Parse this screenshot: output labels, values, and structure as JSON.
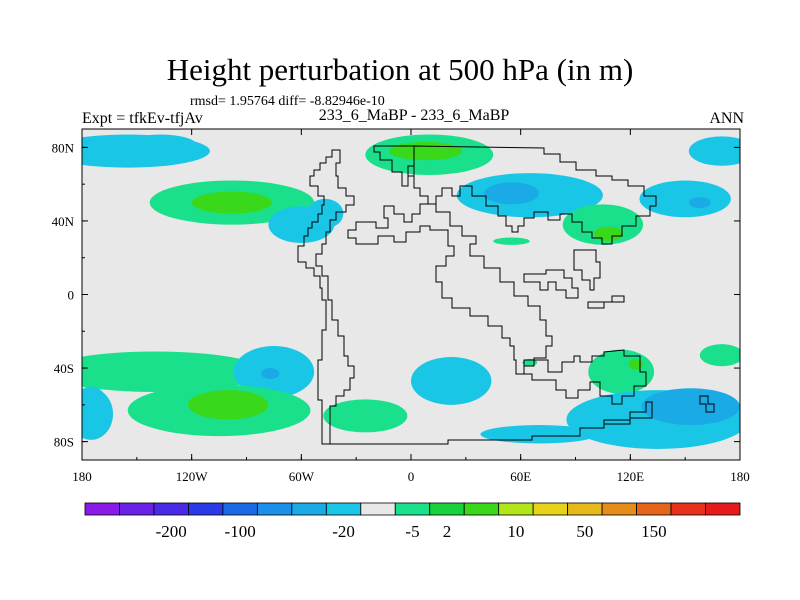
{
  "header": {
    "title": "Height perturbation at 500 hPa (in m)",
    "stats": "rmsd= 1.95764  diff= -8.82946e-10",
    "left_label": "Expt = tfkEv-tfjAv",
    "center_label": "233_6_MaBP - 233_6_MaBP",
    "right_label": "ANN"
  },
  "chart_data": {
    "type": "heatmap",
    "title": "Height perturbation at 500 hPa (in m)",
    "projection": "cylindrical equidistant, longitude 180 to 180, latitude 90S to 90N",
    "x_ticks": [
      "180",
      "120W",
      "60W",
      "0",
      "60E",
      "120E",
      "180"
    ],
    "y_ticks": [
      "80N",
      "40N",
      "0",
      "40S",
      "80S"
    ],
    "colorbar": {
      "labels": [
        "-200",
        "-100",
        "-20",
        "-5",
        "2",
        "10",
        "50",
        "150"
      ],
      "colors": [
        "#8a1ae6",
        "#6a22e6",
        "#4a2ae6",
        "#2a3ae6",
        "#1a6ae6",
        "#1a90e8",
        "#1aabe6",
        "#1ac6e6",
        "#e8e8e8",
        "#1ae08c",
        "#1ad13c",
        "#3ad81a",
        "#b2e61a",
        "#e6d21a",
        "#e6b81a",
        "#e68c1a",
        "#e6641a",
        "#e6301a",
        "#e61a1a"
      ]
    },
    "background_color": "#e8e8e8",
    "features": [
      {
        "kind": "negative",
        "level": "-5 to 2",
        "lon": -155,
        "lat": 78,
        "rx": 45,
        "ry": 9
      },
      {
        "kind": "negative",
        "level": "-5 to 2",
        "lon": -137,
        "lat": 81,
        "rx": 20,
        "ry": 6
      },
      {
        "kind": "negative",
        "level": "-5 to 2",
        "lon": 170,
        "lat": 78,
        "rx": 18,
        "ry": 8
      },
      {
        "kind": "positive",
        "level": "2 to 10",
        "lon": -98,
        "lat": 50,
        "rx": 45,
        "ry": 12
      },
      {
        "kind": "positive",
        "level": "10 to 50",
        "lon": -98,
        "lat": 50,
        "rx": 22,
        "ry": 6
      },
      {
        "kind": "negative",
        "level": "-5 to 2",
        "lon": -60,
        "lat": 38,
        "rx": 18,
        "ry": 10
      },
      {
        "kind": "negative",
        "level": "-5 to 2",
        "lon": -47,
        "lat": 44,
        "rx": 10,
        "ry": 8
      },
      {
        "kind": "positive",
        "level": "2 to 10",
        "lon": 10,
        "lat": 76,
        "rx": 35,
        "ry": 11
      },
      {
        "kind": "positive",
        "level": "10 to 50",
        "lon": 8,
        "lat": 78,
        "rx": 20,
        "ry": 5
      },
      {
        "kind": "negative",
        "level": "-5 to 2",
        "lon": 65,
        "lat": 54,
        "rx": 40,
        "ry": 12
      },
      {
        "kind": "negative",
        "level": "-20 to -5",
        "lon": 55,
        "lat": 55,
        "rx": 15,
        "ry": 6
      },
      {
        "kind": "negative",
        "level": "-5 to 2",
        "lon": 150,
        "lat": 52,
        "rx": 25,
        "ry": 10
      },
      {
        "kind": "negative",
        "level": "-20 to -5",
        "lon": 158,
        "lat": 50,
        "rx": 6,
        "ry": 3
      },
      {
        "kind": "positive",
        "level": "2 to 10",
        "lon": 105,
        "lat": 38,
        "rx": 22,
        "ry": 11
      },
      {
        "kind": "positive",
        "level": "10 to 50",
        "lon": 108,
        "lat": 33,
        "rx": 8,
        "ry": 4
      },
      {
        "kind": "positive",
        "level": "2 to 10",
        "lon": 55,
        "lat": 29,
        "rx": 10,
        "ry": 2
      },
      {
        "kind": "positive",
        "level": "2 to 10",
        "lon": -140,
        "lat": -42,
        "rx": 60,
        "ry": 11
      },
      {
        "kind": "negative",
        "level": "-5 to 2",
        "lon": -75,
        "lat": -42,
        "rx": 22,
        "ry": 14
      },
      {
        "kind": "negative",
        "level": "-20 to -5",
        "lon": -77,
        "lat": -43,
        "rx": 5,
        "ry": 3
      },
      {
        "kind": "negative",
        "level": "-5 to 2",
        "lon": -175,
        "lat": -65,
        "rx": 12,
        "ry": 14
      },
      {
        "kind": "positive",
        "level": "2 to 10",
        "lon": -105,
        "lat": -63,
        "rx": 50,
        "ry": 14
      },
      {
        "kind": "positive",
        "level": "10 to 50",
        "lon": -100,
        "lat": -60,
        "rx": 22,
        "ry": 8
      },
      {
        "kind": "negative",
        "level": "-5 to 2",
        "lon": 22,
        "lat": -47,
        "rx": 22,
        "ry": 13
      },
      {
        "kind": "positive",
        "level": "2 to 10",
        "lon": -25,
        "lat": -66,
        "rx": 23,
        "ry": 9
      },
      {
        "kind": "positive",
        "level": "2 to 10",
        "lon": 65,
        "lat": -37,
        "rx": 4,
        "ry": 2
      },
      {
        "kind": "positive",
        "level": "2 to 10",
        "lon": 115,
        "lat": -42,
        "rx": 18,
        "ry": 12
      },
      {
        "kind": "positive",
        "level": "10 to 50",
        "lon": 123,
        "lat": -38,
        "rx": 4,
        "ry": 3
      },
      {
        "kind": "positive",
        "level": "2 to 10",
        "lon": 170,
        "lat": -33,
        "rx": 12,
        "ry": 6
      },
      {
        "kind": "negative",
        "level": "-5 to 2",
        "lon": 135,
        "lat": -68,
        "rx": 50,
        "ry": 16
      },
      {
        "kind": "negative",
        "level": "-20 to -5",
        "lon": 153,
        "lat": -61,
        "rx": 27,
        "ry": 10
      },
      {
        "kind": "negative",
        "level": "-5 to 2",
        "lon": 70,
        "lat": -76,
        "rx": 32,
        "ry": 5
      },
      {
        "kind": "negative",
        "level": "-5 to 2",
        "lon": -175,
        "lat": -58,
        "rx": 8,
        "ry": 8
      }
    ]
  }
}
